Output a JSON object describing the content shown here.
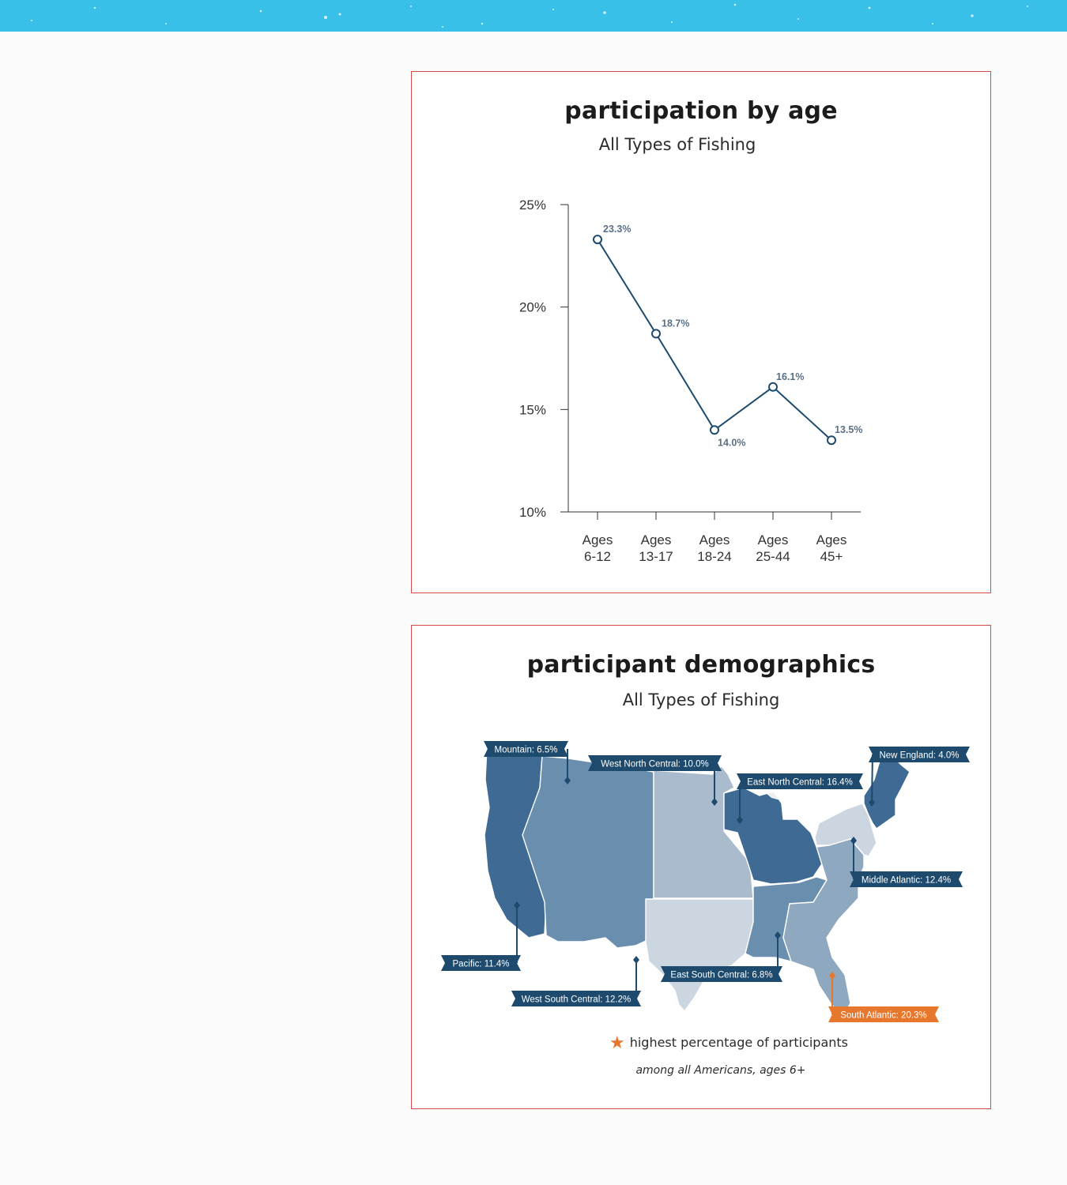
{
  "colors": {
    "top_band": "#39c0e8",
    "card_border": "#d84a4a",
    "line": "#1d4a6d",
    "label_dark": "#1d4a6d",
    "label_highlight": "#e8772e",
    "shade_darkest": "#3e6a93",
    "shade_dark": "#6a8eae",
    "shade_mid": "#8ea8c0",
    "shade_light": "#a9bbcc",
    "shade_lightest": "#ccd6e1"
  },
  "chart_data": [
    {
      "type": "line",
      "title": "participation by age",
      "subtitle": "All Types of Fishing",
      "categories": [
        "Ages 6-12",
        "Ages 13-17",
        "Ages 18-24",
        "Ages 25-44",
        "Ages 45+"
      ],
      "category_lines": [
        [
          "Ages",
          "6-12"
        ],
        [
          "Ages",
          "13-17"
        ],
        [
          "Ages",
          "18-24"
        ],
        [
          "Ages",
          "25-44"
        ],
        [
          "Ages",
          "45+"
        ]
      ],
      "values": [
        23.3,
        18.7,
        14.0,
        16.1,
        13.5
      ],
      "data_labels": [
        "23.3%",
        "18.7%",
        "14.0%",
        "16.1%",
        "13.5%"
      ],
      "ylim": [
        10,
        25
      ],
      "yticks": [
        "10%",
        "15%",
        "20%",
        "25%"
      ],
      "ytick_values": [
        10,
        15,
        20,
        25
      ],
      "xlabel": "",
      "ylabel": "",
      "grid": false
    },
    {
      "type": "map",
      "title": "participant demographics",
      "subtitle": "All Types of Fishing",
      "regions": [
        {
          "name": "Mountain",
          "value": 6.5,
          "label": "Mountain: 6.5%",
          "highlight": false
        },
        {
          "name": "West North Central",
          "value": 10.0,
          "label": "West North Central: 10.0%",
          "highlight": false
        },
        {
          "name": "East North Central",
          "value": 16.4,
          "label": "East North Central: 16.4%",
          "highlight": false
        },
        {
          "name": "New England",
          "value": 4.0,
          "label": "New England: 4.0%",
          "highlight": false
        },
        {
          "name": "Middle Atlantic",
          "value": 12.4,
          "label": "Middle Atlantic: 12.4%",
          "highlight": false
        },
        {
          "name": "Pacific",
          "value": 11.4,
          "label": "Pacific: 11.4%",
          "highlight": false
        },
        {
          "name": "West South Central",
          "value": 12.2,
          "label": "West South Central: 12.2%",
          "highlight": false
        },
        {
          "name": "East South Central",
          "value": 6.8,
          "label": "East South Central: 6.8%",
          "highlight": false
        },
        {
          "name": "South Atlantic",
          "value": 20.3,
          "label": "South Atlantic: 20.3%",
          "highlight": true
        }
      ],
      "legend": "highest percentage of participants",
      "footnote": "among all Americans, ages 6+"
    }
  ]
}
